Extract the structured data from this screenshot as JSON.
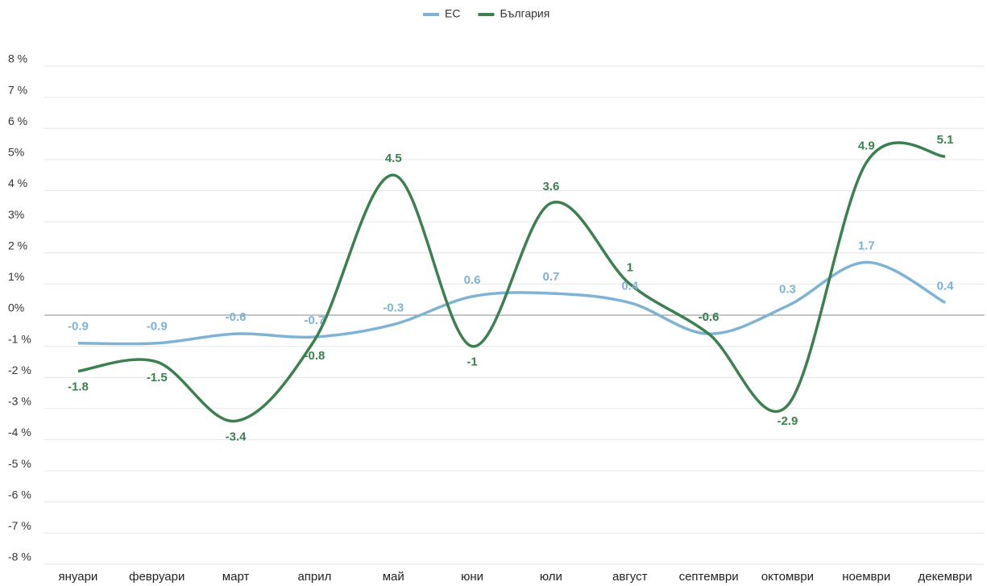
{
  "chart_data": {
    "type": "line",
    "categories": [
      "януари",
      "февруари",
      "март",
      "април",
      "май",
      "юни",
      "юли",
      "август",
      "септември",
      "октомври",
      "ноември",
      "декември"
    ],
    "series": [
      {
        "name": "ЕС",
        "color": "#7fb3d5",
        "values": [
          -0.9,
          -0.9,
          -0.6,
          -0.7,
          -0.3,
          0.6,
          0.7,
          0.4,
          -0.6,
          0.3,
          1.7,
          0.4
        ]
      },
      {
        "name": "България",
        "color": "#3d8050",
        "values": [
          -1.8,
          -1.5,
          -3.4,
          -0.8,
          4.5,
          -1.0,
          3.6,
          1.0,
          -0.6,
          -2.9,
          4.9,
          5.1
        ]
      }
    ],
    "ylim": [
      -8,
      8
    ],
    "yticks": [
      {
        "value": -8,
        "label": "-8 %"
      },
      {
        "value": -7,
        "label": "-7 %"
      },
      {
        "value": -6,
        "label": "-6 %"
      },
      {
        "value": -5,
        "label": "-5 %"
      },
      {
        "value": -4,
        "label": "-4 %"
      },
      {
        "value": -3,
        "label": "-3 %"
      },
      {
        "value": -2,
        "label": "-2 %"
      },
      {
        "value": -1,
        "label": "-1 %"
      },
      {
        "value": 0,
        "label": "0%"
      },
      {
        "value": 1,
        "label": "1%"
      },
      {
        "value": 2,
        "label": "2 %"
      },
      {
        "value": 3,
        "label": "3%"
      },
      {
        "value": 4,
        "label": "4 %"
      },
      {
        "value": 5,
        "label": "5%"
      },
      {
        "value": 6,
        "label": "6 %"
      },
      {
        "value": 7,
        "label": "7 %"
      },
      {
        "value": 8,
        "label": "8 %"
      }
    ],
    "grid": true,
    "legend": "top"
  }
}
